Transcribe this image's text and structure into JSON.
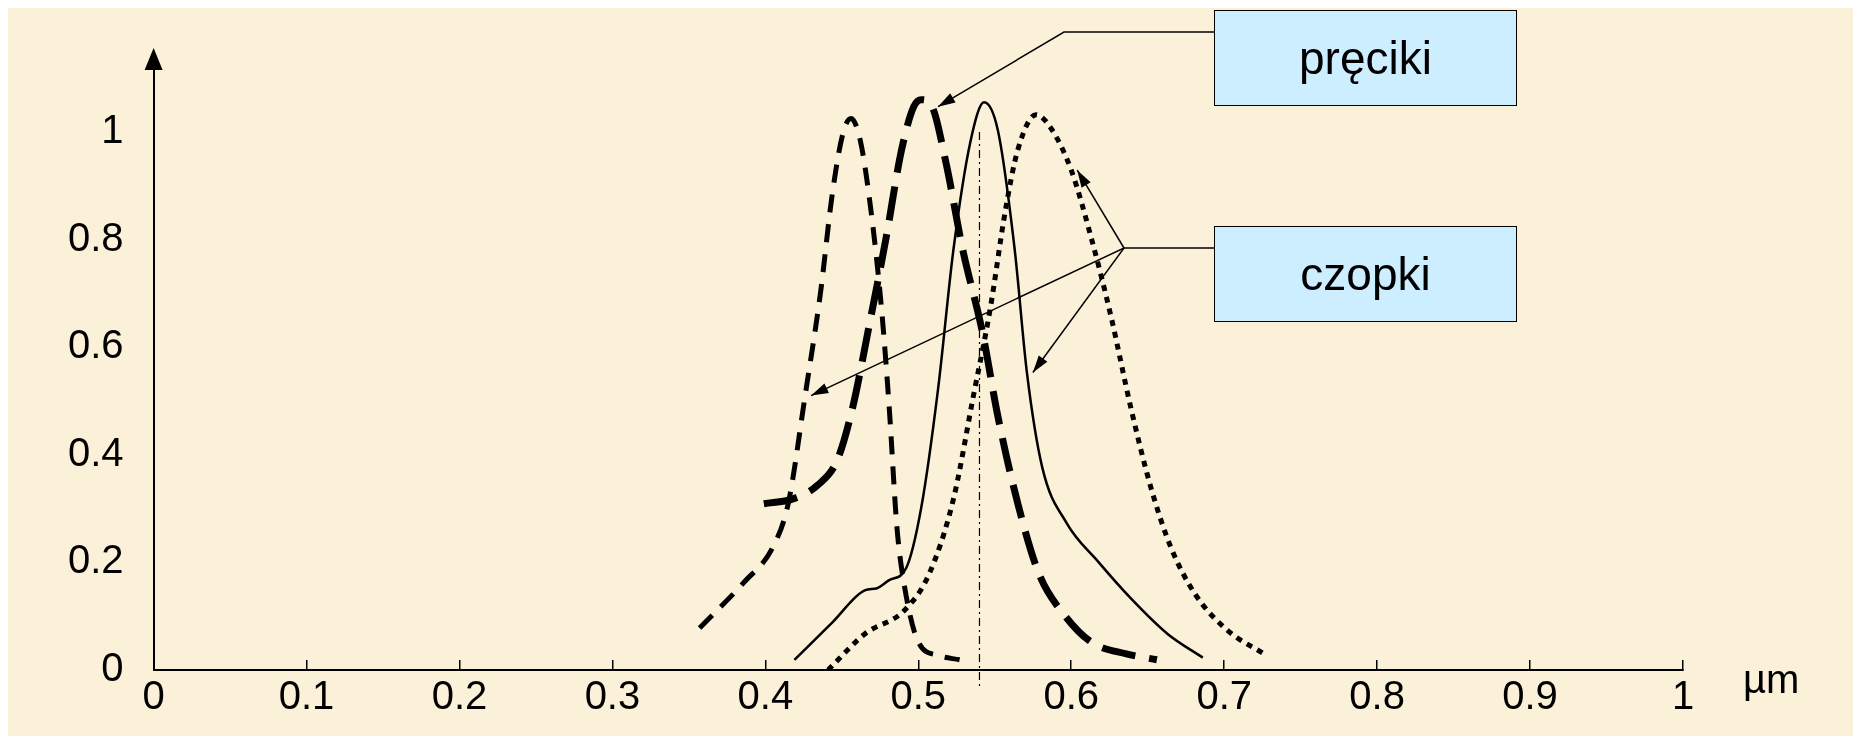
{
  "chart_data": {
    "type": "line",
    "xlabel": "µm",
    "xlim": [
      0,
      1
    ],
    "xticks": [
      0,
      0.1,
      0.2,
      0.3,
      0.4,
      0.5,
      0.6,
      0.7,
      0.8,
      0.9,
      1
    ],
    "ylim": [
      0,
      1.13
    ],
    "yticks": [
      0,
      0.2,
      0.4,
      0.6,
      0.8,
      1
    ],
    "grid": false,
    "legend": false,
    "marker": "none",
    "series": [
      {
        "color": "#000000",
        "line_style": "dashed",
        "x": [
          0.357,
          0.386,
          0.405,
          0.415,
          0.426,
          0.436,
          0.444,
          0.451,
          0.456,
          0.462,
          0.469,
          0.476,
          0.481,
          0.486,
          0.491,
          0.5,
          0.513,
          0.527
        ],
        "values": [
          0.078,
          0.163,
          0.229,
          0.31,
          0.51,
          0.7,
          0.89,
          1.0,
          1.025,
          0.985,
          0.855,
          0.67,
          0.487,
          0.266,
          0.155,
          0.052,
          0.027,
          0.019
        ]
      },
      {
        "color": "#000000",
        "line_style": "dashed",
        "x": [
          0.399,
          0.418,
          0.434,
          0.447,
          0.457,
          0.468,
          0.479,
          0.489,
          0.497,
          0.502,
          0.509,
          0.518,
          0.529,
          0.542,
          0.552,
          0.565,
          0.579,
          0.595,
          0.613,
          0.636,
          0.656
        ],
        "values": [
          0.309,
          0.318,
          0.343,
          0.39,
          0.487,
          0.642,
          0.804,
          0.966,
          1.047,
          1.06,
          1.047,
          0.944,
          0.782,
          0.627,
          0.472,
          0.31,
          0.178,
          0.104,
          0.052,
          0.03,
          0.019
        ]
      },
      {
        "color": "#000000",
        "line_style": "solid",
        "x": [
          0.419,
          0.444,
          0.465,
          0.473,
          0.481,
          0.492,
          0.502,
          0.513,
          0.523,
          0.534,
          0.543,
          0.552,
          0.563,
          0.571,
          0.581,
          0.597,
          0.618,
          0.639,
          0.663,
          0.686
        ],
        "values": [
          0.019,
          0.089,
          0.148,
          0.152,
          0.167,
          0.189,
          0.303,
          0.524,
          0.782,
          0.981,
          1.055,
          1.003,
          0.782,
          0.553,
          0.377,
          0.273,
          0.2,
          0.133,
          0.067,
          0.023
        ]
      },
      {
        "color": "#000000",
        "line_style": "dotted",
        "x": [
          0.441,
          0.465,
          0.491,
          0.507,
          0.523,
          0.536,
          0.547,
          0.557,
          0.565,
          0.577,
          0.586,
          0.6,
          0.613,
          0.626,
          0.639,
          0.652,
          0.665,
          0.681,
          0.702,
          0.726
        ],
        "values": [
          0.0,
          0.067,
          0.111,
          0.178,
          0.318,
          0.509,
          0.671,
          0.855,
          0.966,
          1.032,
          1.01,
          0.929,
          0.804,
          0.657,
          0.487,
          0.34,
          0.229,
          0.141,
          0.074,
          0.03
        ]
      }
    ],
    "ref_lines": [
      {
        "axis": "x",
        "value": 0.54,
        "line_style": "dashed",
        "color": "#000000"
      }
    ],
    "annotations": [
      "pręciki",
      "czopki"
    ]
  }
}
